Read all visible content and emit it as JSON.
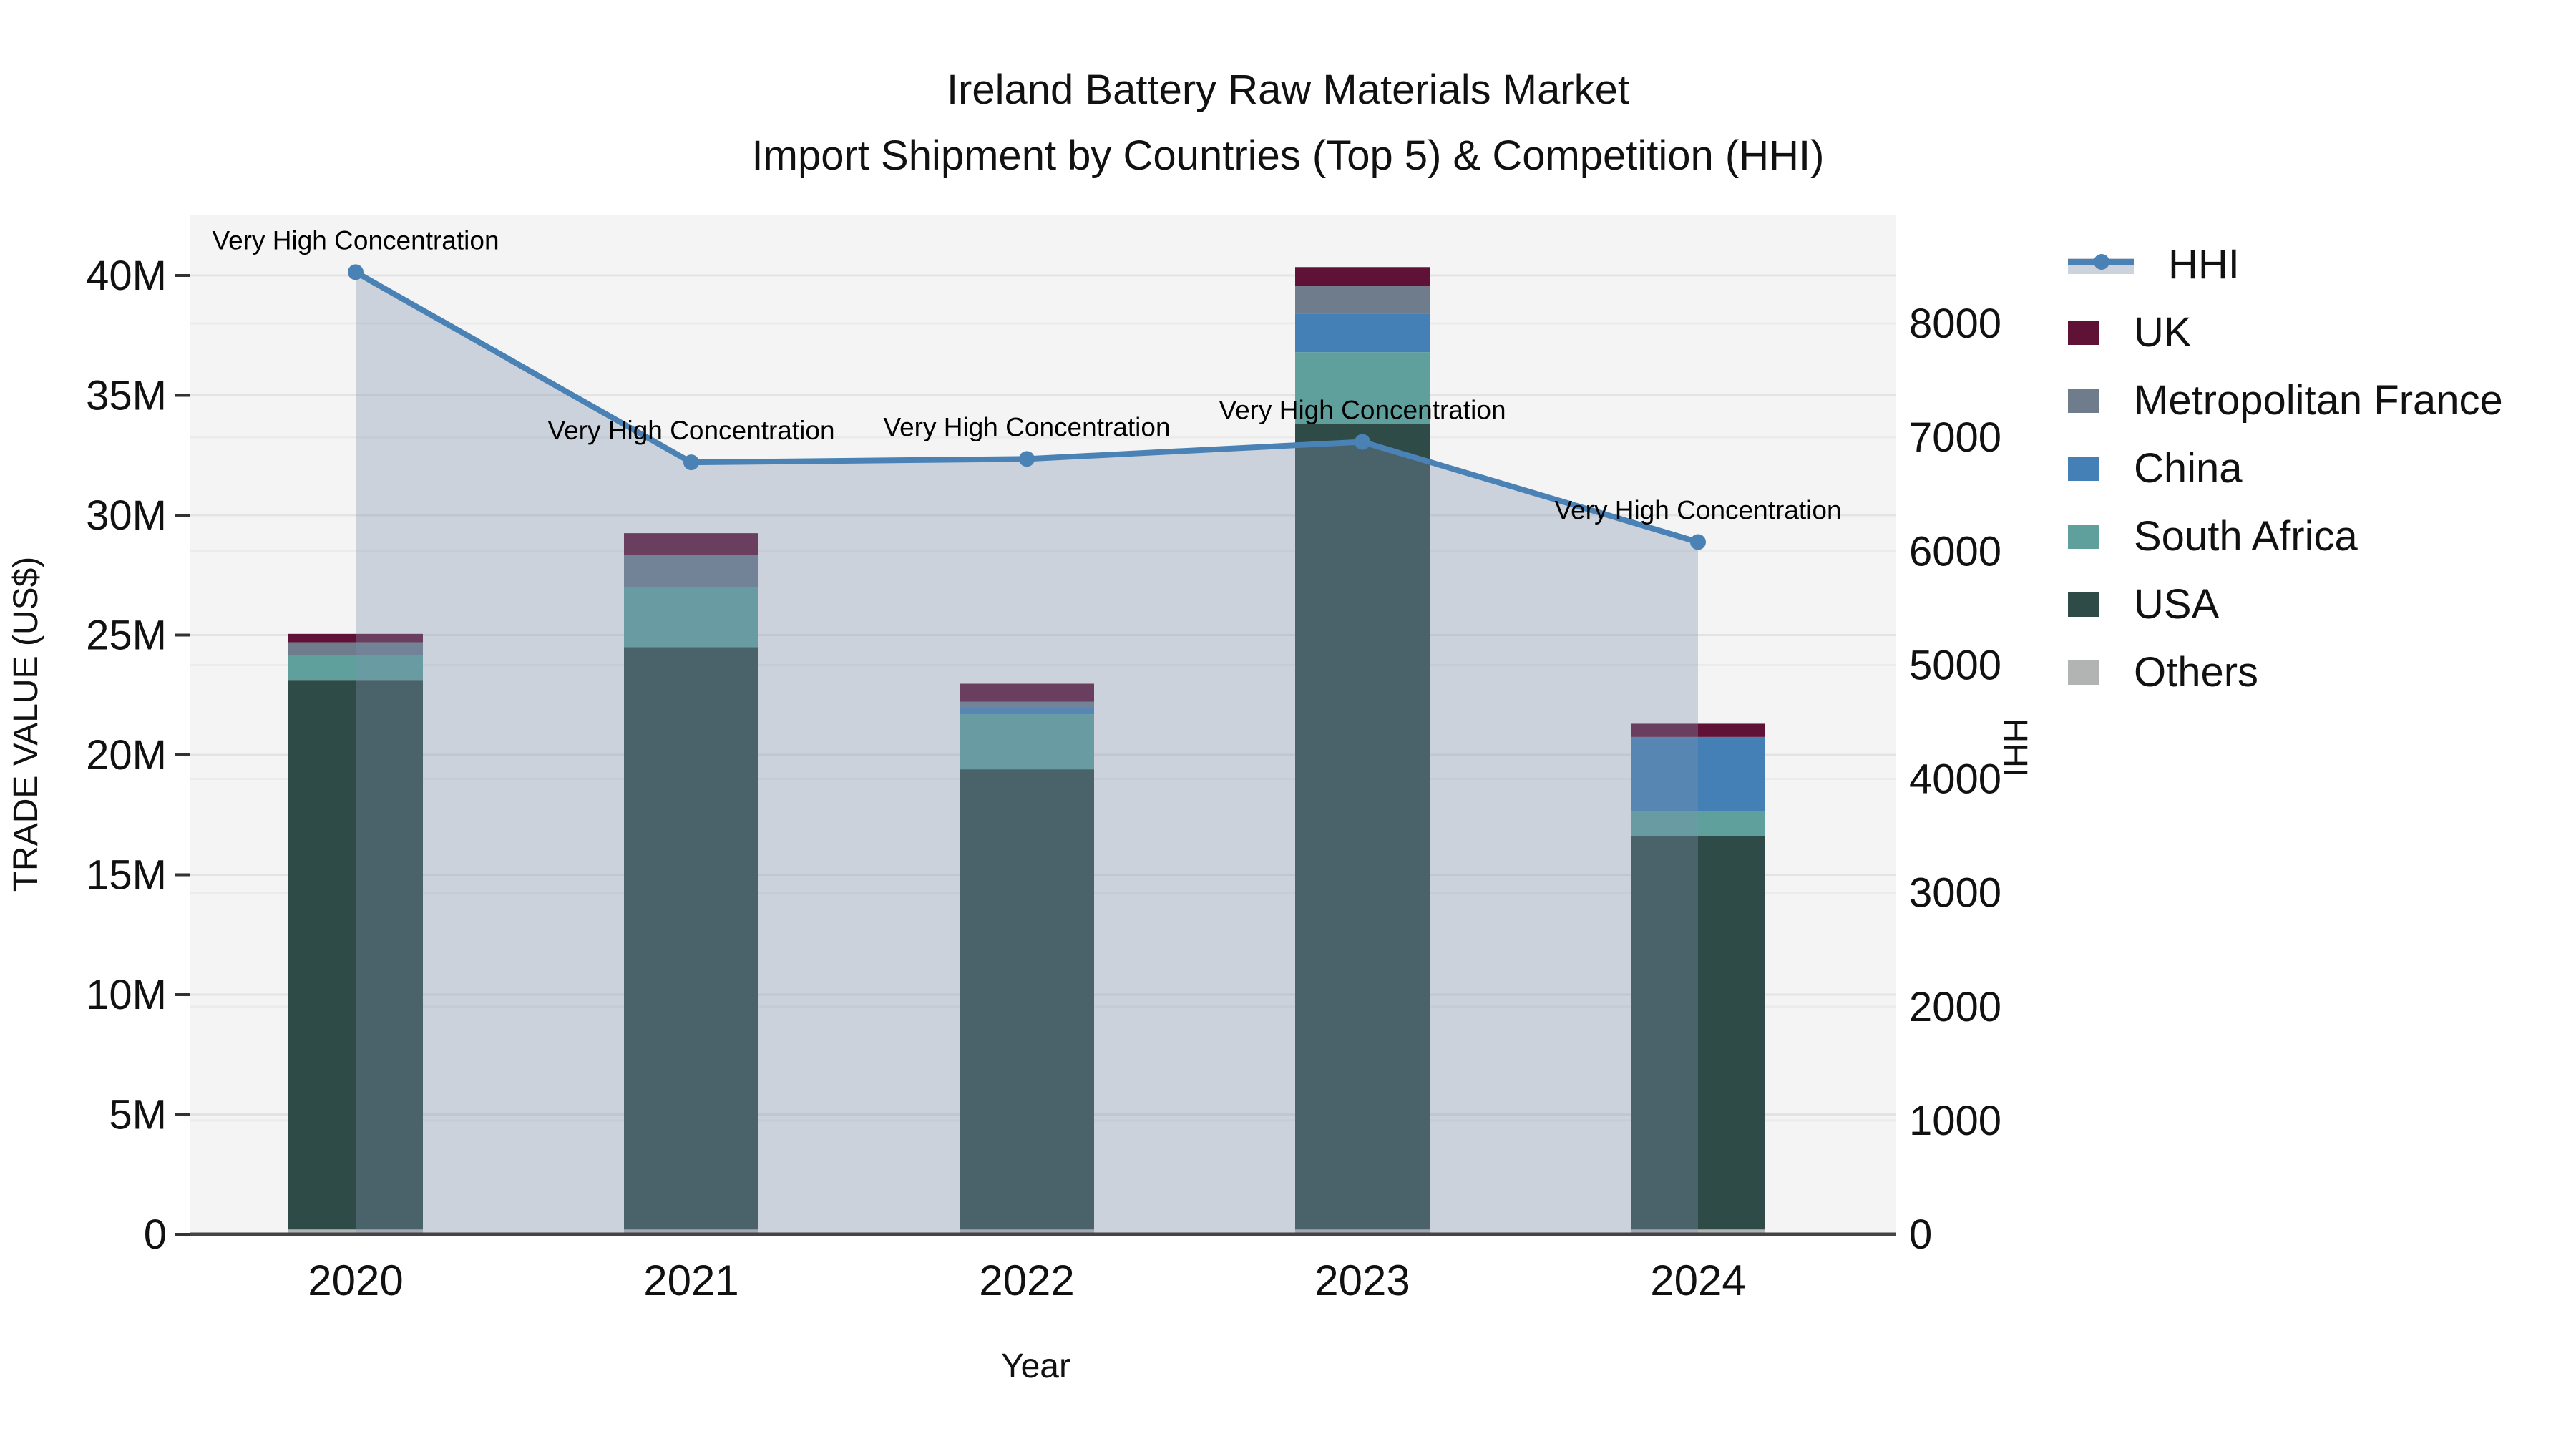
{
  "title": {
    "line1": "Ireland Battery Raw Materials Market",
    "line2": "Import Shipment by Countries (Top 5) & Competition (HHI)"
  },
  "axes": {
    "x": {
      "label": "Year",
      "categories": [
        "2020",
        "2021",
        "2022",
        "2023",
        "2024"
      ]
    },
    "y_left": {
      "label": "TRADE VALUE (US$)",
      "tick_values_millions": [
        0,
        5,
        10,
        15,
        20,
        25,
        30,
        35,
        40
      ],
      "tick_labels": [
        "0",
        "5M",
        "10M",
        "15M",
        "20M",
        "25M",
        "30M",
        "35M",
        "40M"
      ]
    },
    "y_right": {
      "label": "HHI",
      "tick_values": [
        0,
        1000,
        2000,
        3000,
        4000,
        5000,
        6000,
        7000,
        8000
      ],
      "tick_labels": [
        "0",
        "1000",
        "2000",
        "3000",
        "4000",
        "5000",
        "6000",
        "7000",
        "8000"
      ]
    }
  },
  "chart_data": {
    "type": "bar",
    "subtype": "stacked-bars-with-line",
    "categories": [
      "2020",
      "2021",
      "2022",
      "2023",
      "2024"
    ],
    "value_unit": "million US$",
    "series": [
      {
        "name": "Others",
        "color": "#b2b4b4",
        "values": [
          0.2,
          0.2,
          0.2,
          0.2,
          0.2
        ]
      },
      {
        "name": "USA",
        "color": "#2e4b48",
        "values": [
          22.9,
          24.3,
          19.2,
          33.6,
          16.4
        ]
      },
      {
        "name": "South Africa",
        "color": "#5fa09d",
        "values": [
          1.05,
          2.5,
          2.3,
          3.0,
          1.05
        ]
      },
      {
        "name": "China",
        "color": "#4480b5",
        "values": [
          0,
          0,
          0.25,
          1.6,
          3.1
        ]
      },
      {
        "name": "Metropolitan France",
        "color": "#6e7c8c",
        "values": [
          0.55,
          1.35,
          0.27,
          1.15,
          0
        ]
      },
      {
        "name": "UK",
        "color": "#5f1236",
        "values": [
          0.35,
          0.9,
          0.75,
          0.8,
          0.55
        ]
      }
    ],
    "bar_totals_millions": [
      25.05,
      29.25,
      22.97,
      40.35,
      21.3
    ],
    "line_series": {
      "name": "HHI",
      "color": "#4a82b5",
      "area_fill": "rgba(127,145,172,0.35)",
      "values": [
        8450,
        6780,
        6810,
        6960,
        6080
      ],
      "axis": "right",
      "annotation_label": "Very High Concentration",
      "annotations": [
        "Very High Concentration",
        "Very High Concentration",
        "Very High Concentration",
        "Very High Concentration",
        "Very High Concentration"
      ]
    },
    "ylim_left_millions": [
      0,
      42.5
    ],
    "ylim_right": [
      0,
      8960
    ],
    "grid": true,
    "legend_position": "right-outside"
  },
  "legend": {
    "items": [
      {
        "label": "HHI",
        "type": "line",
        "color": "#4a82b5"
      },
      {
        "label": "UK",
        "type": "swatch",
        "color": "#5f1236"
      },
      {
        "label": "Metropolitan France",
        "type": "swatch",
        "color": "#6e7c8c"
      },
      {
        "label": "China",
        "type": "swatch",
        "color": "#4480b5"
      },
      {
        "label": "South Africa",
        "type": "swatch",
        "color": "#5fa09d"
      },
      {
        "label": "USA",
        "type": "swatch",
        "color": "#2e4b48"
      },
      {
        "label": "Others",
        "type": "swatch",
        "color": "#b2b4b4"
      }
    ]
  },
  "style": {
    "plot_bg": "#f4f4f4",
    "grid_color_left": "#e3e3e3",
    "grid_color_right": "#ebebeb",
    "spine_color": "#444444",
    "text_color": "#111111"
  }
}
